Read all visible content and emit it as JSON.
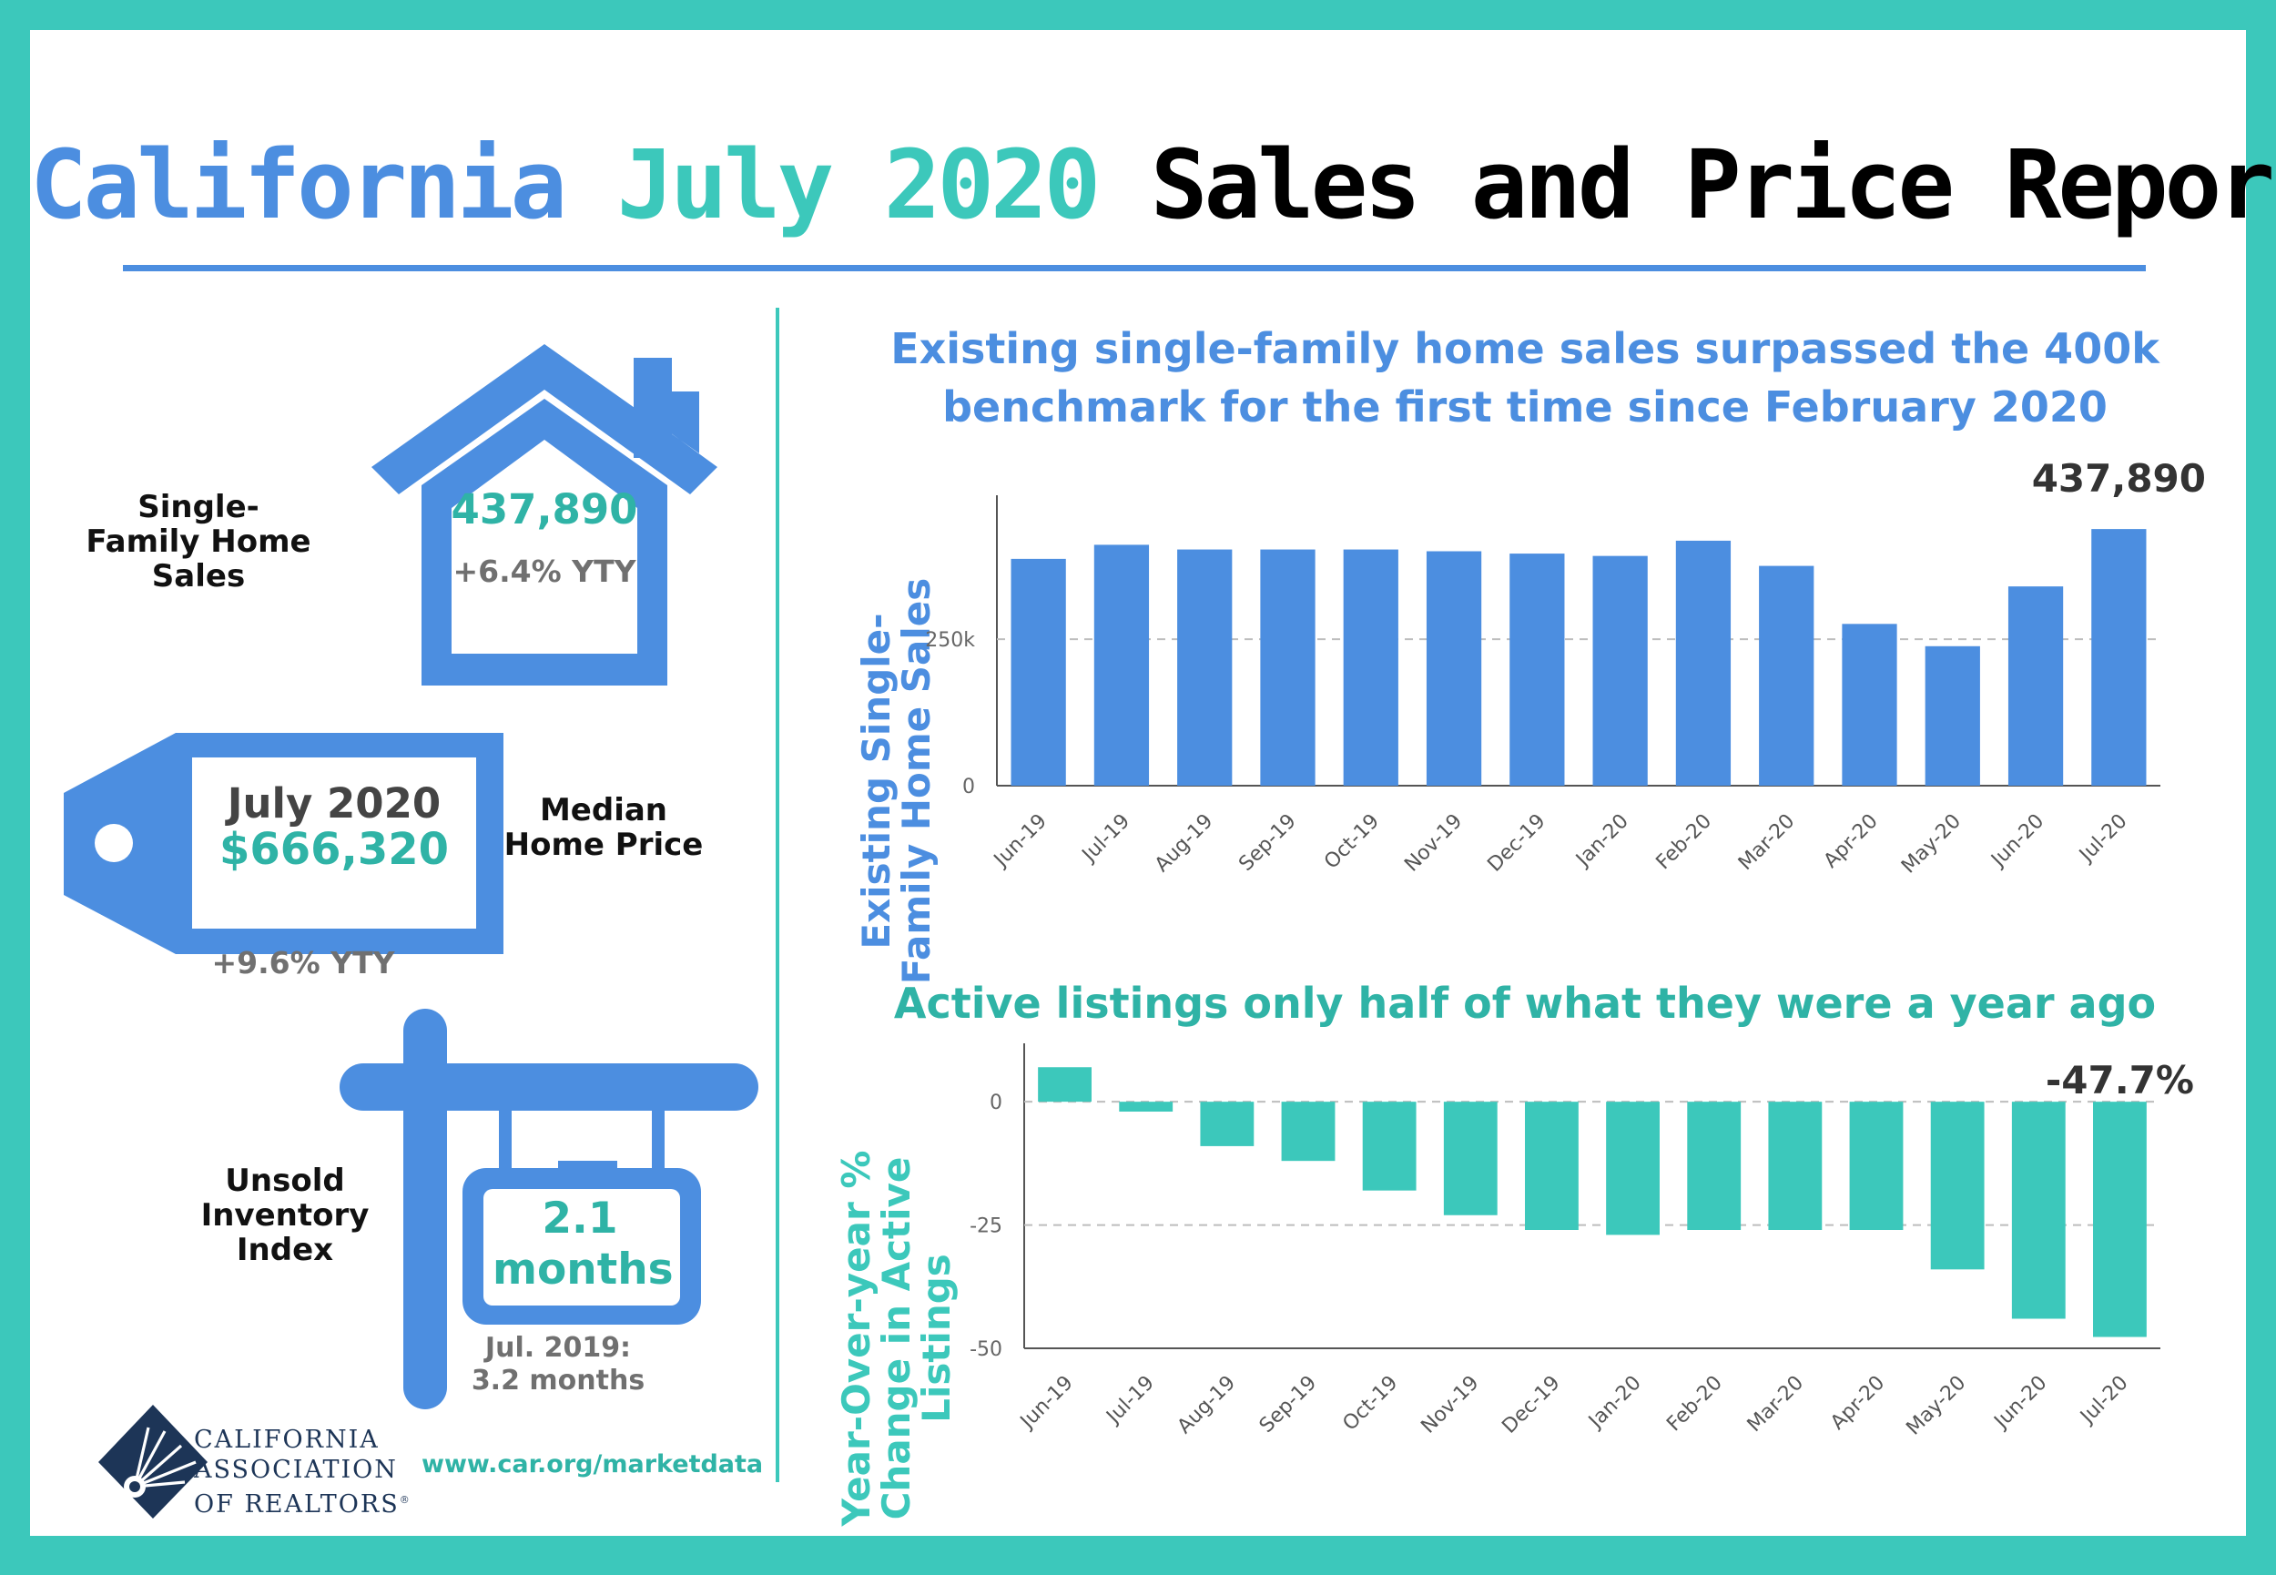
{
  "title": {
    "part1": "California",
    "part2": "July 2020",
    "part3": "Sales and Price Report"
  },
  "sales": {
    "label": "Single-Family Home Sales",
    "value": "437,890",
    "change": "+6.4% YTY"
  },
  "price": {
    "period": "July 2020",
    "value": "$666,320",
    "label": "Median Home Price",
    "change": "+9.6% YTY"
  },
  "inventory": {
    "label": "Unsold Inventory Index",
    "value": "2.1 months",
    "compare": "Jul. 2019: 3.2 months"
  },
  "footer": {
    "org_line1": "CALIFORNIA",
    "org_line2": "ASSOCIATION",
    "org_line3": "OF REALTORS",
    "org_mark": "®",
    "url": "www.car.org/marketdata"
  },
  "colors": {
    "blue": "#4c8ee0",
    "teal": "#3cc8bb",
    "teal_text": "#2fb3a6",
    "gray": "#707070",
    "navy": "#1d3557"
  },
  "chart_data": [
    {
      "type": "bar",
      "title": "Existing single-family home sales surpassed the 400k benchmark for the first time since February 2020",
      "ylabel": "Existing Single-Family Home Sales",
      "categories": [
        "Jun-19",
        "Jul-19",
        "Aug-19",
        "Sep-19",
        "Oct-19",
        "Nov-19",
        "Dec-19",
        "Jan-20",
        "Feb-20",
        "Mar-20",
        "Apr-20",
        "May-20",
        "Jun-20",
        "Jul-20"
      ],
      "values": [
        387000,
        411000,
        403000,
        403000,
        403000,
        400000,
        396000,
        392000,
        418000,
        375000,
        276000,
        238000,
        340000,
        437890
      ],
      "yticks": [
        0,
        250000
      ],
      "ytick_labels": [
        "0",
        "250k"
      ],
      "ylim": [
        0,
        480000
      ],
      "grid": "dashed at 250k",
      "annotation": "437,890",
      "color": "#4c8ee0"
    },
    {
      "type": "bar",
      "title": "Active listings only half of what they were a year ago",
      "ylabel": "Year-Over-year % Change in Active Listings",
      "categories": [
        "Jun-19",
        "Jul-19",
        "Aug-19",
        "Sep-19",
        "Oct-19",
        "Nov-19",
        "Dec-19",
        "Jan-20",
        "Feb-20",
        "Mar-20",
        "Apr-20",
        "May-20",
        "Jun-20",
        "Jul-20"
      ],
      "values": [
        7,
        -2,
        -9,
        -12,
        -18,
        -23,
        -26,
        -27,
        -26,
        -26,
        -26,
        -34,
        -44,
        -47.7
      ],
      "yticks": [
        0,
        -25,
        -50
      ],
      "ytick_labels": [
        "0",
        "-25",
        "-50"
      ],
      "ylim": [
        -50,
        10
      ],
      "grid": "dashed at -25",
      "annotation": "-47.7%",
      "color": "#3cc8bb"
    }
  ]
}
